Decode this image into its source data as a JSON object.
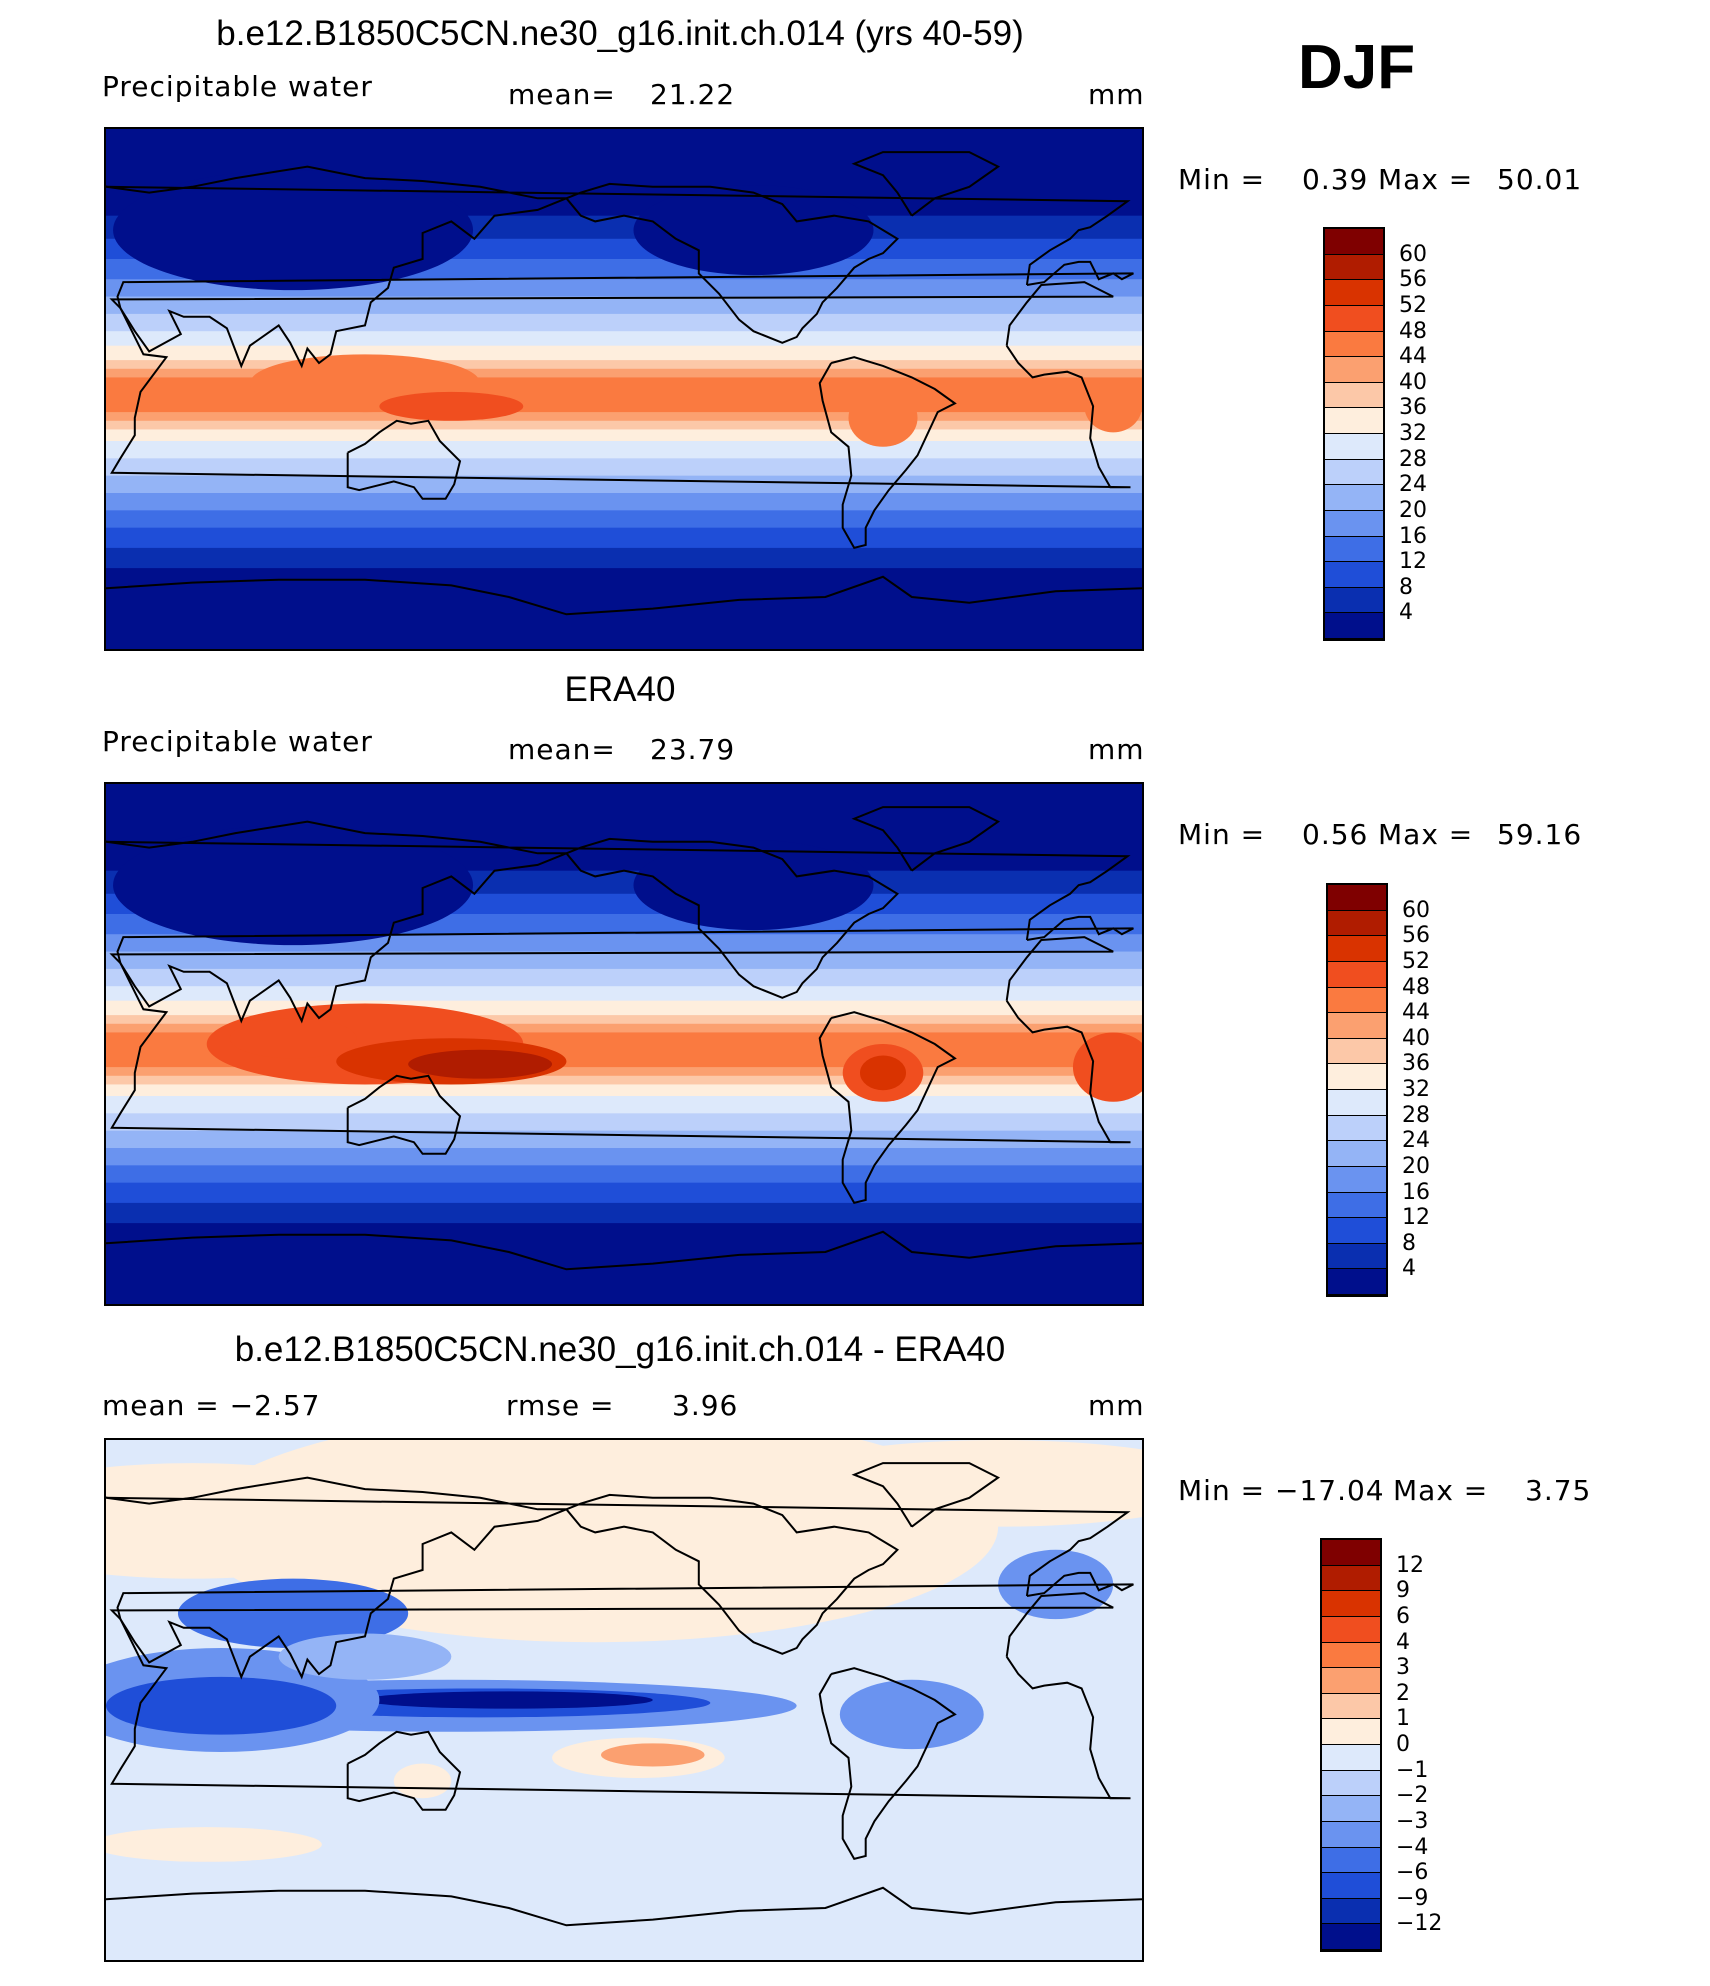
{
  "season": "DJF",
  "panels": [
    {
      "title": "b.e12.B1850C5CN.ne30_g16.init.ch.014 (yrs 40-59)",
      "left_label": "Precipitable  water",
      "stat_label": "mean=",
      "stat_value": "21.22",
      "units": "mm",
      "min_label": "Min  =",
      "min_value": "0.39",
      "max_label": "Max  =",
      "max_value": "50.01",
      "colorbar": {
        "labels": [
          "60",
          "56",
          "52",
          "48",
          "44",
          "40",
          "36",
          "32",
          "28",
          "24",
          "20",
          "16",
          "12",
          "8",
          "4"
        ],
        "colors": [
          "#7f0000",
          "#b01c00",
          "#d93300",
          "#f04e1f",
          "#fa7a40",
          "#fba070",
          "#fcc8a8",
          "#feeedd",
          "#dde9fb",
          "#bcd0fa",
          "#94b4f6",
          "#6a93f0",
          "#3e6ee6",
          "#1f4ed8",
          "#0a2fb0",
          "#000f8c"
        ]
      },
      "map_style": "model"
    },
    {
      "title": "ERA40",
      "left_label": "Precipitable  water",
      "stat_label": "mean=",
      "stat_value": "23.79",
      "units": "mm",
      "min_label": "Min  =",
      "min_value": "0.56",
      "max_label": "Max  =",
      "max_value": "59.16",
      "colorbar": {
        "labels": [
          "60",
          "56",
          "52",
          "48",
          "44",
          "40",
          "36",
          "32",
          "28",
          "24",
          "20",
          "16",
          "12",
          "8",
          "4"
        ],
        "colors": [
          "#7f0000",
          "#b01c00",
          "#d93300",
          "#f04e1f",
          "#fa7a40",
          "#fba070",
          "#fcc8a8",
          "#feeedd",
          "#dde9fb",
          "#bcd0fa",
          "#94b4f6",
          "#6a93f0",
          "#3e6ee6",
          "#1f4ed8",
          "#0a2fb0",
          "#000f8c"
        ]
      },
      "map_style": "obs"
    },
    {
      "title": "b.e12.B1850C5CN.ne30_g16.init.ch.014 - ERA40",
      "left_label": "mean  =    −2.57",
      "stat_label": "rmse  =",
      "stat_value": "3.96",
      "units": "mm",
      "min_label": "Min  =",
      "min_value": "−17.04",
      "max_label": "Max  =",
      "max_value": "3.75",
      "colorbar": {
        "labels": [
          "12",
          "9",
          "6",
          "4",
          "3",
          "2",
          "1",
          "0",
          "−1",
          "−2",
          "−3",
          "−4",
          "−6",
          "−9",
          "−12"
        ],
        "colors": [
          "#7f0000",
          "#b01c00",
          "#d93300",
          "#f04e1f",
          "#fa7a40",
          "#fba070",
          "#fcc8a8",
          "#feeedd",
          "#dde9fb",
          "#bcd0fa",
          "#94b4f6",
          "#6a93f0",
          "#3e6ee6",
          "#1f4ed8",
          "#0a2fb0",
          "#000f8c"
        ]
      },
      "map_style": "diff"
    }
  ]
}
